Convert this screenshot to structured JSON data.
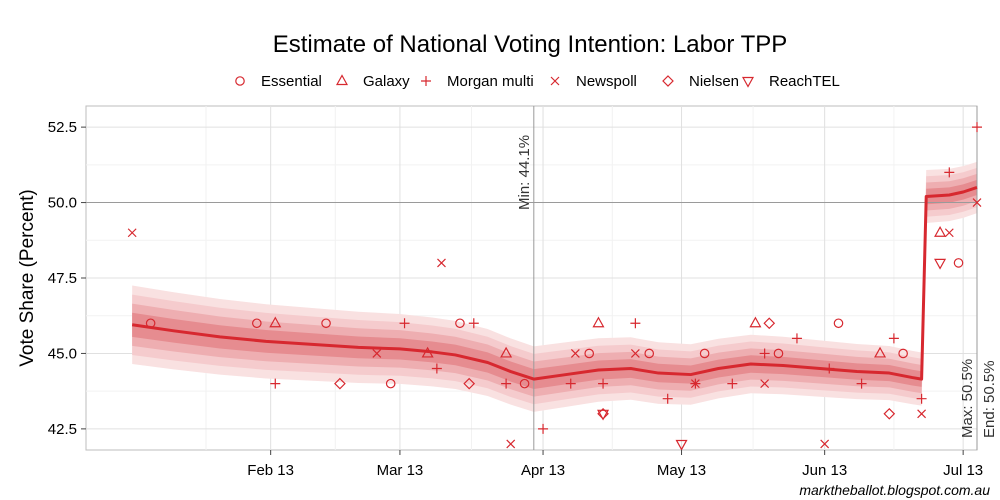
{
  "chart_data": {
    "type": "line",
    "title": "Estimate of National Voting Intention: Labor TPP",
    "xlabel": "",
    "ylabel": "Vote Share (Percent)",
    "ylim": [
      41.8,
      53.2
    ],
    "xlim_day": [
      -9,
      184
    ],
    "x_unit": "days since 2013-01-01",
    "yticks": [
      42.5,
      45.0,
      47.5,
      50.0,
      52.5
    ],
    "ytick_labels": [
      "42.5",
      "45.0",
      "47.5",
      "50.0",
      "52.5"
    ],
    "xticks": [
      {
        "day": 31,
        "label": "Feb 13"
      },
      {
        "day": 59,
        "label": "Mar 13"
      },
      {
        "day": 90,
        "label": "Apr 13"
      },
      {
        "day": 120,
        "label": "May 13"
      },
      {
        "day": 151,
        "label": "Jun 13"
      },
      {
        "day": 181,
        "label": "Jul 13"
      }
    ],
    "grid": true,
    "legend_position": "top",
    "legend": [
      {
        "name": "Essential",
        "shape": "circle"
      },
      {
        "name": "Galaxy",
        "shape": "triangle-up"
      },
      {
        "name": "Morgan multi",
        "shape": "plus"
      },
      {
        "name": "Newspoll",
        "shape": "cross"
      },
      {
        "name": "Nielsen",
        "shape": "diamond"
      },
      {
        "name": "ReachTEL",
        "shape": "triangle-down"
      }
    ],
    "trend": [
      {
        "day": 1,
        "value": 45.95
      },
      {
        "day": 10,
        "value": 45.75
      },
      {
        "day": 20,
        "value": 45.55
      },
      {
        "day": 30,
        "value": 45.4
      },
      {
        "day": 40,
        "value": 45.3
      },
      {
        "day": 50,
        "value": 45.2
      },
      {
        "day": 59,
        "value": 45.15
      },
      {
        "day": 66,
        "value": 45.05
      },
      {
        "day": 71,
        "value": 44.95
      },
      {
        "day": 78,
        "value": 44.7
      },
      {
        "day": 83,
        "value": 44.4
      },
      {
        "day": 88,
        "value": 44.15
      },
      {
        "day": 95,
        "value": 44.3
      },
      {
        "day": 102,
        "value": 44.45
      },
      {
        "day": 109,
        "value": 44.5
      },
      {
        "day": 115,
        "value": 44.35
      },
      {
        "day": 122,
        "value": 44.3
      },
      {
        "day": 128,
        "value": 44.5
      },
      {
        "day": 135,
        "value": 44.65
      },
      {
        "day": 142,
        "value": 44.6
      },
      {
        "day": 150,
        "value": 44.5
      },
      {
        "day": 158,
        "value": 44.4
      },
      {
        "day": 165,
        "value": 44.35
      },
      {
        "day": 170,
        "value": 44.2
      },
      {
        "day": 172,
        "value": 44.15
      },
      {
        "day": 173,
        "value": 50.2
      },
      {
        "day": 178,
        "value": 50.25
      },
      {
        "day": 181,
        "value": 50.35
      },
      {
        "day": 184,
        "value": 50.5
      }
    ],
    "bands": [
      {
        "level": "outer",
        "start_offset": 1.3,
        "end_offset": 0.85,
        "color": "#f9e1e1"
      },
      {
        "level": "wide",
        "start_offset": 1.0,
        "end_offset": 0.65,
        "color": "#f5cbcd"
      },
      {
        "level": "mid",
        "start_offset": 0.7,
        "end_offset": 0.45,
        "color": "#eeaeb1"
      },
      {
        "level": "inner",
        "start_offset": 0.4,
        "end_offset": 0.25,
        "color": "#e68c90"
      }
    ],
    "polls": [
      {
        "house": "Newspoll",
        "day": 1,
        "value": 49
      },
      {
        "house": "Essential",
        "day": 5,
        "value": 46
      },
      {
        "house": "Essential",
        "day": 28,
        "value": 46
      },
      {
        "house": "Galaxy",
        "day": 32,
        "value": 46
      },
      {
        "house": "Morgan multi",
        "day": 32,
        "value": 44
      },
      {
        "house": "Essential",
        "day": 43,
        "value": 46
      },
      {
        "house": "Nielsen",
        "day": 46,
        "value": 44
      },
      {
        "house": "Newspoll",
        "day": 54,
        "value": 45
      },
      {
        "house": "Essential",
        "day": 57,
        "value": 44
      },
      {
        "house": "Morgan multi",
        "day": 60,
        "value": 46
      },
      {
        "house": "Galaxy",
        "day": 65,
        "value": 45
      },
      {
        "house": "Morgan multi",
        "day": 67,
        "value": 44.5
      },
      {
        "house": "Newspoll",
        "day": 68,
        "value": 48
      },
      {
        "house": "Essential",
        "day": 72,
        "value": 46
      },
      {
        "house": "Morgan multi",
        "day": 75,
        "value": 46
      },
      {
        "house": "Nielsen",
        "day": 74,
        "value": 44
      },
      {
        "house": "Morgan multi",
        "day": 82,
        "value": 44
      },
      {
        "house": "Galaxy",
        "day": 82,
        "value": 45
      },
      {
        "house": "Newspoll",
        "day": 83,
        "value": 42
      },
      {
        "house": "Essential",
        "day": 86,
        "value": 44
      },
      {
        "house": "Morgan multi",
        "day": 90,
        "value": 42.5
      },
      {
        "house": "Morgan multi",
        "day": 96,
        "value": 44
      },
      {
        "house": "Newspoll",
        "day": 97,
        "value": 45
      },
      {
        "house": "Essential",
        "day": 100,
        "value": 45
      },
      {
        "house": "Galaxy",
        "day": 102,
        "value": 46
      },
      {
        "house": "Morgan multi",
        "day": 103,
        "value": 44
      },
      {
        "house": "Nielsen",
        "day": 103,
        "value": 43
      },
      {
        "house": "ReachTEL",
        "day": 103,
        "value": 43
      },
      {
        "house": "Morgan multi",
        "day": 110,
        "value": 46
      },
      {
        "house": "Newspoll",
        "day": 110,
        "value": 45
      },
      {
        "house": "Essential",
        "day": 113,
        "value": 45
      },
      {
        "house": "Morgan multi",
        "day": 117,
        "value": 43.5
      },
      {
        "house": "ReachTEL",
        "day": 120,
        "value": 42
      },
      {
        "house": "Morgan multi",
        "day": 123,
        "value": 44
      },
      {
        "house": "Newspoll",
        "day": 123,
        "value": 44
      },
      {
        "house": "Essential",
        "day": 125,
        "value": 45
      },
      {
        "house": "Morgan multi",
        "day": 131,
        "value": 44
      },
      {
        "house": "Galaxy",
        "day": 136,
        "value": 46
      },
      {
        "house": "Nielsen",
        "day": 139,
        "value": 46
      },
      {
        "house": "Newspoll",
        "day": 138,
        "value": 44
      },
      {
        "house": "Morgan multi",
        "day": 138,
        "value": 45
      },
      {
        "house": "Essential",
        "day": 141,
        "value": 45
      },
      {
        "house": "Morgan multi",
        "day": 145,
        "value": 45.5
      },
      {
        "house": "Newspoll",
        "day": 151,
        "value": 42
      },
      {
        "house": "Morgan multi",
        "day": 152,
        "value": 44.5
      },
      {
        "house": "Essential",
        "day": 154,
        "value": 46
      },
      {
        "house": "Morgan multi",
        "day": 159,
        "value": 44
      },
      {
        "house": "Galaxy",
        "day": 163,
        "value": 45
      },
      {
        "house": "Nielsen",
        "day": 165,
        "value": 43
      },
      {
        "house": "Morgan multi",
        "day": 166,
        "value": 45.5
      },
      {
        "house": "Essential",
        "day": 168,
        "value": 45
      },
      {
        "house": "Morgan multi",
        "day": 172,
        "value": 43.5
      },
      {
        "house": "Newspoll",
        "day": 172,
        "value": 43
      },
      {
        "house": "Galaxy",
        "day": 176,
        "value": 49
      },
      {
        "house": "ReachTEL",
        "day": 176,
        "value": 48
      },
      {
        "house": "Newspoll",
        "day": 178,
        "value": 49
      },
      {
        "house": "Morgan multi",
        "day": 178,
        "value": 51
      },
      {
        "house": "Essential",
        "day": 180,
        "value": 48
      },
      {
        "house": "Newspoll",
        "day": 184,
        "value": 50
      },
      {
        "house": "Morgan multi",
        "day": 184,
        "value": 52.5
      }
    ],
    "reference_lines": {
      "min": {
        "day": 88,
        "label": "Min: 44.1%"
      },
      "end": {
        "day": 184,
        "label_max": "Max: 50.5%",
        "label_end": "End: 50.5%"
      },
      "hline": 50.0
    },
    "colors": {
      "line": "#d7282f",
      "marker": "#d7282f",
      "panel_border": "#bdbdbd",
      "grid_major": "#e0e0e0",
      "grid_minor": "#f2f2f2",
      "ref_line": "#9a9a9a"
    }
  },
  "credit": "marktheballot.blogspot.com.au"
}
